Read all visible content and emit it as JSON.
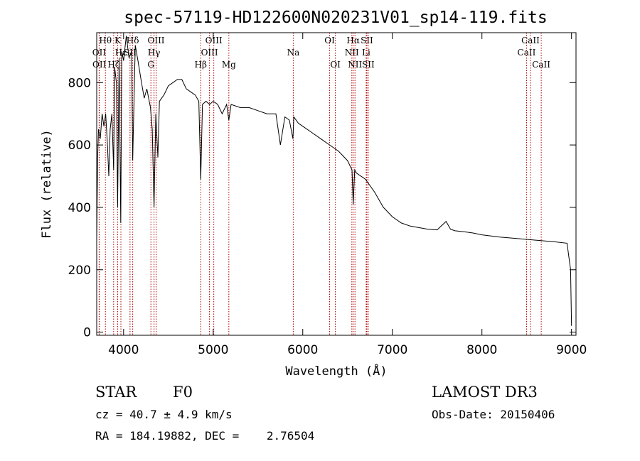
{
  "chart_data": {
    "type": "line",
    "title": "spec-57119-HD122600N020231V01_sp14-119.fits",
    "xlabel": "Wavelength (Å)",
    "ylabel": "Flux (relative)",
    "xlim": [
      3700,
      9050
    ],
    "ylim": [
      -10,
      960
    ],
    "xticks": [
      4000,
      5000,
      6000,
      7000,
      8000,
      9000
    ],
    "yticks": [
      0,
      200,
      400,
      600,
      800
    ],
    "series": [
      {
        "name": "flux",
        "x": [
          3700,
          3710,
          3720,
          3740,
          3760,
          3780,
          3800,
          3820,
          3835,
          3850,
          3870,
          3889,
          3900,
          3920,
          3933,
          3950,
          3968,
          3980,
          4000,
          4030,
          4060,
          4090,
          4102,
          4130,
          4160,
          4200,
          4230,
          4260,
          4300,
          4320,
          4340,
          4360,
          4383,
          4400,
          4450,
          4500,
          4550,
          4600,
          4650,
          4700,
          4750,
          4800,
          4840,
          4861,
          4880,
          4920,
          4960,
          5000,
          5050,
          5100,
          5150,
          5175,
          5200,
          5300,
          5400,
          5500,
          5600,
          5700,
          5750,
          5800,
          5850,
          5890,
          5900,
          5950,
          6000,
          6100,
          6200,
          6300,
          6400,
          6500,
          6550,
          6563,
          6580,
          6600,
          6700,
          6800,
          6900,
          7000,
          7100,
          7200,
          7300,
          7400,
          7500,
          7600,
          7650,
          7700,
          7800,
          7900,
          8000,
          8200,
          8400,
          8600,
          8800,
          8950,
          8990,
          9000
        ],
        "y": [
          290,
          560,
          650,
          620,
          700,
          660,
          700,
          600,
          500,
          650,
          700,
          520,
          850,
          800,
          400,
          880,
          350,
          900,
          870,
          950,
          880,
          900,
          550,
          920,
          870,
          800,
          750,
          780,
          720,
          650,
          400,
          700,
          560,
          740,
          760,
          790,
          800,
          810,
          810,
          780,
          770,
          760,
          740,
          490,
          730,
          740,
          730,
          740,
          730,
          700,
          730,
          680,
          730,
          720,
          720,
          710,
          700,
          700,
          600,
          690,
          680,
          620,
          690,
          670,
          660,
          640,
          620,
          600,
          580,
          550,
          520,
          410,
          520,
          510,
          490,
          450,
          400,
          370,
          350,
          340,
          335,
          330,
          328,
          355,
          330,
          325,
          322,
          318,
          312,
          305,
          300,
          295,
          290,
          285,
          200,
          20
        ]
      }
    ],
    "lines": [
      {
        "label": "Hθ",
        "x": 3797,
        "row": 1
      },
      {
        "label": "OII",
        "x": 3727,
        "row": 2
      },
      {
        "label": "OII",
        "x": 3729,
        "row": 3
      },
      {
        "label": "K",
        "x": 3934,
        "row": 1
      },
      {
        "label": "Hε",
        "x": 3970,
        "row": 2
      },
      {
        "label": "Hζ",
        "x": 3889,
        "row": 3
      },
      {
        "label": "Hδ",
        "x": 4102,
        "row": 1
      },
      {
        "label": "SII",
        "x": 4072,
        "row": 2
      },
      {
        "label": "OIII",
        "x": 4363,
        "row": 1
      },
      {
        "label": "Hγ",
        "x": 4340,
        "row": 2
      },
      {
        "label": "G",
        "x": 4305,
        "row": 3
      },
      {
        "label": "OIII",
        "x": 5007,
        "row": 1
      },
      {
        "label": "OIII",
        "x": 4959,
        "row": 2
      },
      {
        "label": "Hβ",
        "x": 4861,
        "row": 3
      },
      {
        "label": "Mg",
        "x": 5175,
        "row": 3
      },
      {
        "label": "Na",
        "x": 5894,
        "row": 2
      },
      {
        "label": "OI",
        "x": 6300,
        "row": 1
      },
      {
        "label": "OI",
        "x": 6364,
        "row": 3
      },
      {
        "label": "Hα",
        "x": 6563,
        "row": 1
      },
      {
        "label": "SII",
        "x": 6716,
        "row": 1
      },
      {
        "label": "NII",
        "x": 6548,
        "row": 2
      },
      {
        "label": "Li",
        "x": 6708,
        "row": 2
      },
      {
        "label": "NII",
        "x": 6583,
        "row": 3
      },
      {
        "label": "SII",
        "x": 6731,
        "row": 3
      },
      {
        "label": "CaII",
        "x": 8542,
        "row": 1
      },
      {
        "label": "CaII",
        "x": 8498,
        "row": 2
      },
      {
        "label": "CaII",
        "x": 8662,
        "row": 3
      }
    ]
  },
  "info": {
    "object_class": "STAR",
    "subclass": "F0",
    "survey": "LAMOST DR3",
    "cz": "cz = 40.7 ± 4.9 km/s",
    "obs_date": "Obs-Date: 20150406",
    "coords": "RA = 184.19882, DEC =    2.76504"
  }
}
